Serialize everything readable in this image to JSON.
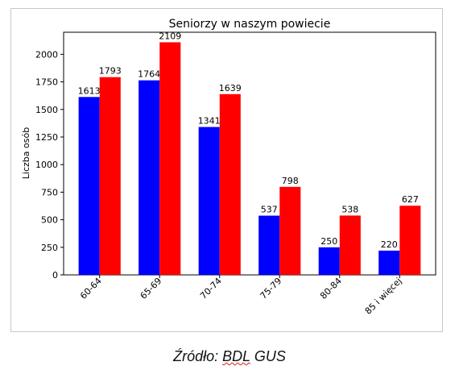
{
  "chart_data": {
    "type": "bar",
    "title": "Seniorzy w naszym powiecie",
    "xlabel": "",
    "ylabel": "Liczba osób",
    "ylim": [
      0,
      2200
    ],
    "yticks": [
      0,
      250,
      500,
      750,
      1000,
      1250,
      1500,
      1750,
      2000
    ],
    "categories": [
      "60-64",
      "65-69",
      "70-74",
      "75-79",
      "80-84",
      "85 i więcej"
    ],
    "series": [
      {
        "color": "#0000ff",
        "values": [
          1613,
          1764,
          1341,
          537,
          250,
          220
        ]
      },
      {
        "color": "#ff0000",
        "values": [
          1793,
          2109,
          1639,
          798,
          538,
          627
        ]
      }
    ],
    "grid": false,
    "legend": "none"
  },
  "caption": {
    "prefix": "Źródło: ",
    "source_underlined": "BDL",
    "suffix": " GUS"
  }
}
